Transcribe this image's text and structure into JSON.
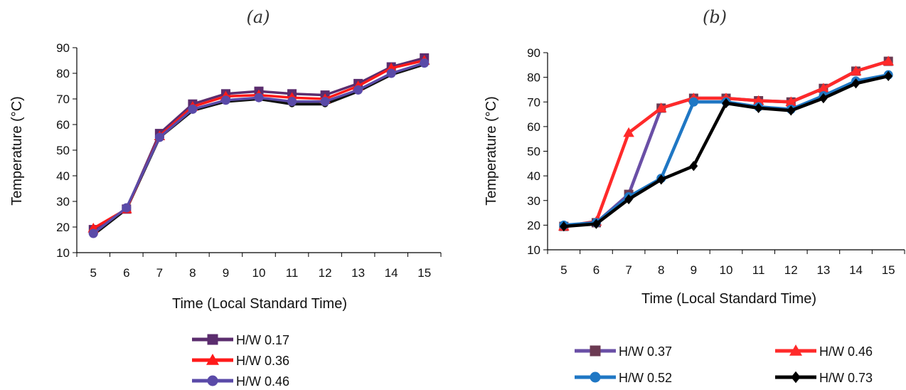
{
  "chart_data": [
    {
      "type": "line",
      "title": "(a)",
      "xlabel": "Time (Local Standard Time)",
      "ylabel": "Temperature (°C)",
      "categories": [
        "5",
        "6",
        "7",
        "8",
        "9",
        "10",
        "11",
        "12",
        "13",
        "14",
        "15"
      ],
      "ylim": [
        10,
        90
      ],
      "yticks": [
        10,
        20,
        30,
        40,
        50,
        60,
        70,
        80,
        90
      ],
      "grid": false,
      "legend_position": "bottom",
      "series": [
        {
          "name": "H/W 0.17",
          "color": "#5b2d6e",
          "marker": "square",
          "values": [
            19,
            27,
            56.5,
            68,
            72,
            73,
            72,
            71.5,
            76,
            82.5,
            86
          ]
        },
        {
          "name": "H/W 0.36",
          "color": "#ff1a1a",
          "marker": "triangle",
          "values": [
            19.5,
            27,
            55.5,
            67,
            71,
            71.5,
            70.5,
            70,
            75,
            82,
            85
          ]
        },
        {
          "name": "H/W 0.46",
          "color": "#5a4aa8",
          "marker": "circle",
          "values": [
            17.5,
            27.5,
            55,
            66,
            69.5,
            70.5,
            69,
            69,
            73.5,
            80,
            84
          ]
        }
      ],
      "black_line_values": [
        17,
        27,
        55,
        65.5,
        69,
        70,
        68,
        68,
        73,
        79.5,
        83.5
      ]
    },
    {
      "type": "line",
      "title": "(b)",
      "xlabel": "Time (Local Standard Time)",
      "ylabel": "Temperature (°C)",
      "categories": [
        "5",
        "6",
        "7",
        "8",
        "9",
        "10",
        "11",
        "12",
        "13",
        "14",
        "15"
      ],
      "ylim": [
        10,
        90
      ],
      "yticks": [
        10,
        20,
        30,
        40,
        50,
        60,
        70,
        80,
        90
      ],
      "grid": false,
      "legend_position": "bottom",
      "series": [
        {
          "name": "H/W 0.37",
          "color": "#6b3a52",
          "line_color": "#6a4fa6",
          "marker": "square",
          "values": [
            19.5,
            21,
            32.5,
            67.5,
            71.5,
            71.5,
            70.5,
            70,
            75.5,
            82.5,
            86.5
          ]
        },
        {
          "name": "H/W 0.46",
          "color": "#ff2a2a",
          "marker": "triangle",
          "values": [
            19.5,
            21.5,
            57.5,
            67.5,
            71.5,
            71.5,
            70.5,
            70,
            75.5,
            82.5,
            86.5
          ]
        },
        {
          "name": "H/W 0.52",
          "color": "#1f77c4",
          "marker": "circle",
          "values": [
            20,
            21,
            31.5,
            39,
            70,
            70,
            68,
            67,
            72.5,
            78.5,
            81
          ]
        },
        {
          "name": "H/W 0.73",
          "color": "#000000",
          "marker": "diamond",
          "values": [
            19.5,
            20.5,
            30.5,
            38.5,
            44,
            69.5,
            67.5,
            66.5,
            71.5,
            77.5,
            80.5
          ]
        }
      ]
    }
  ]
}
